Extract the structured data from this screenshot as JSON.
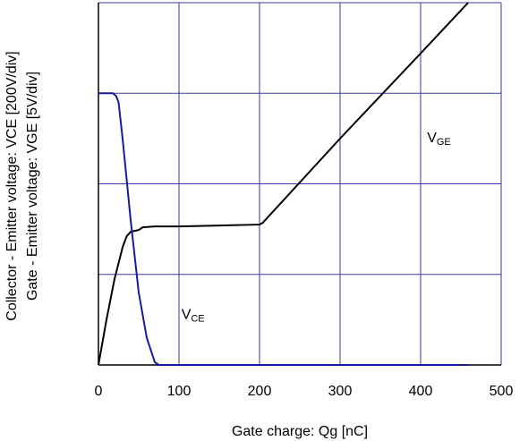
{
  "chart_data": {
    "type": "line",
    "xlabel": "Gate charge: Qg [nC]",
    "ylabel": [
      "Collector - Emitter voltage: VCE [200V/div]",
      "Gate - Emitter voltage: VGE [5V/div]"
    ],
    "xlim": [
      0,
      500
    ],
    "xticks": [
      0,
      100,
      200,
      300,
      400,
      500
    ],
    "ylim": [
      0,
      4
    ],
    "yticks": [
      0,
      1,
      2,
      3,
      4
    ],
    "grid": true,
    "grid_color": "#3a3aa8",
    "series": [
      {
        "name": "VGE",
        "color": "#000000",
        "x": [
          0,
          10,
          20,
          30,
          35,
          40,
          50,
          55,
          70,
          100,
          150,
          200,
          204,
          300,
          400,
          459
        ],
        "values": [
          0,
          0.5,
          0.95,
          1.3,
          1.42,
          1.47,
          1.49,
          1.52,
          1.53,
          1.53,
          1.54,
          1.55,
          1.57,
          2.5,
          3.44,
          4
        ],
        "label_at": [
          408,
          2.5
        ]
      },
      {
        "name": "VCE",
        "color": "#1a1a9c",
        "x": [
          0,
          18,
          22,
          25,
          30,
          40,
          50,
          60,
          70,
          75,
          200,
          460
        ],
        "values": [
          3,
          3,
          2.97,
          2.9,
          2.5,
          1.6,
          0.8,
          0.3,
          0.03,
          0,
          0,
          0
        ],
        "label_at": [
          103,
          0.55
        ]
      }
    ]
  }
}
